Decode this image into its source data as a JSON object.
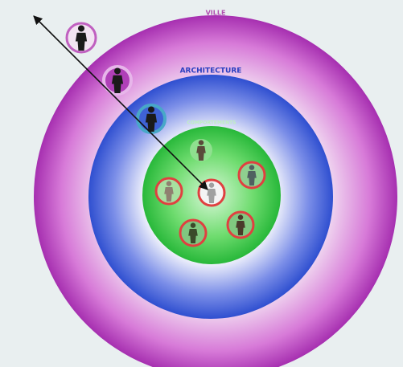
{
  "labels": {
    "outer": "VILLE",
    "middle": "ARCHITECTURE",
    "inner": "COMPORTEMENTS"
  }
}
